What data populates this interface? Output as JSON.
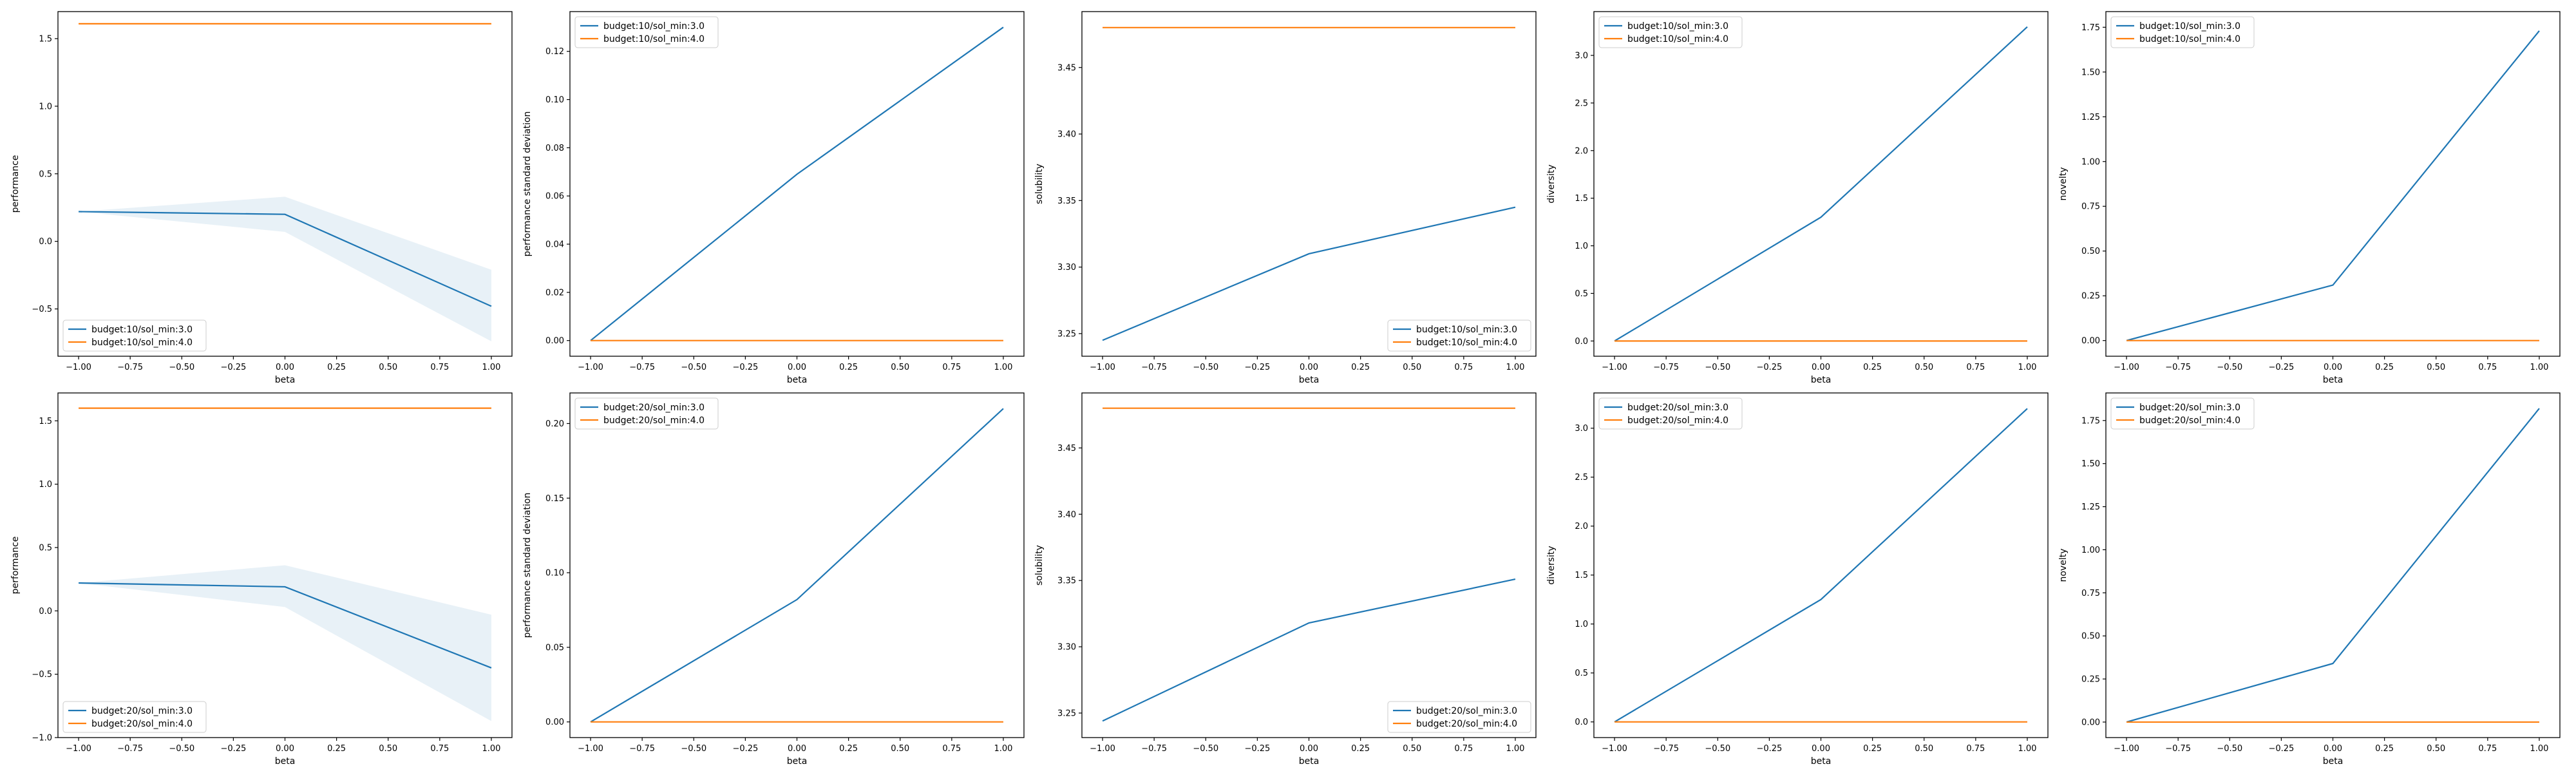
{
  "colors": {
    "series1": "#1f77b4",
    "series2": "#ff7f0e",
    "band": "#1f77b4"
  },
  "chart_data": [
    {
      "type": "line",
      "xlabel": "beta",
      "ylabel": "performance",
      "ylim": [
        -0.85,
        1.7
      ],
      "yticks": [
        -0.5,
        0.0,
        0.5,
        1.0,
        1.5
      ],
      "tick_decimals": 1,
      "legend": "lower-left",
      "x": [
        -1.0,
        0.0,
        1.0
      ],
      "series": [
        {
          "name": "budget:10/sol_min:3.0",
          "values": [
            0.22,
            0.2,
            -0.48
          ],
          "band": [
            [
              0.22,
              0.22
            ],
            [
              0.07,
              0.33
            ],
            [
              -0.74,
              -0.21
            ]
          ]
        },
        {
          "name": "budget:10/sol_min:4.0",
          "values": [
            1.61,
            1.61,
            1.61
          ]
        }
      ]
    },
    {
      "type": "line",
      "xlabel": "beta",
      "ylabel": "performance standard deviation",
      "ylim": [
        -0.0065,
        0.1365
      ],
      "yticks": [
        0.0,
        0.02,
        0.04,
        0.06,
        0.08,
        0.1,
        0.12
      ],
      "tick_decimals": 2,
      "legend": "upper-left",
      "x": [
        -1.0,
        0.0,
        1.0
      ],
      "series": [
        {
          "name": "budget:10/sol_min:3.0",
          "values": [
            0.0,
            0.069,
            0.13
          ]
        },
        {
          "name": "budget:10/sol_min:4.0",
          "values": [
            0.0,
            0.0,
            0.0
          ]
        }
      ]
    },
    {
      "type": "line",
      "xlabel": "beta",
      "ylabel": "solubility",
      "ylim": [
        3.233,
        3.492
      ],
      "yticks": [
        3.25,
        3.3,
        3.35,
        3.4,
        3.45
      ],
      "tick_decimals": 2,
      "legend": "lower-right",
      "x": [
        -1.0,
        0.0,
        1.0
      ],
      "series": [
        {
          "name": "budget:10/sol_min:3.0",
          "values": [
            3.245,
            3.31,
            3.345
          ]
        },
        {
          "name": "budget:10/sol_min:4.0",
          "values": [
            3.48,
            3.48,
            3.48
          ]
        }
      ]
    },
    {
      "type": "line",
      "xlabel": "beta",
      "ylabel": "diversity",
      "ylim": [
        -0.16,
        3.46
      ],
      "yticks": [
        0.0,
        0.5,
        1.0,
        1.5,
        2.0,
        2.5,
        3.0
      ],
      "tick_decimals": 1,
      "legend": "upper-left",
      "x": [
        -1.0,
        0.0,
        1.0
      ],
      "series": [
        {
          "name": "budget:10/sol_min:3.0",
          "values": [
            0.0,
            1.3,
            3.3
          ]
        },
        {
          "name": "budget:10/sol_min:4.0",
          "values": [
            0.0,
            0.0,
            0.0
          ]
        }
      ]
    },
    {
      "type": "line",
      "xlabel": "beta",
      "ylabel": "novelty",
      "ylim": [
        -0.0875,
        1.8375
      ],
      "yticks": [
        0.0,
        0.25,
        0.5,
        0.75,
        1.0,
        1.25,
        1.5,
        1.75
      ],
      "tick_decimals": 2,
      "legend": "upper-left",
      "x": [
        -1.0,
        0.0,
        1.0
      ],
      "series": [
        {
          "name": "budget:10/sol_min:3.0",
          "values": [
            0.0,
            0.31,
            1.73
          ]
        },
        {
          "name": "budget:10/sol_min:4.0",
          "values": [
            0.0,
            0.0,
            0.0
          ]
        }
      ]
    },
    {
      "type": "line",
      "xlabel": "beta",
      "ylabel": "performance",
      "ylim": [
        -1.0,
        1.72
      ],
      "yticks": [
        -1.0,
        -0.5,
        0.0,
        0.5,
        1.0,
        1.5
      ],
      "tick_decimals": 1,
      "legend": "lower-left",
      "x": [
        -1.0,
        0.0,
        1.0
      ],
      "series": [
        {
          "name": "budget:20/sol_min:3.0",
          "values": [
            0.22,
            0.19,
            -0.45
          ],
          "band": [
            [
              0.22,
              0.22
            ],
            [
              0.03,
              0.36
            ],
            [
              -0.87,
              -0.03
            ]
          ]
        },
        {
          "name": "budget:20/sol_min:4.0",
          "values": [
            1.6,
            1.6,
            1.6
          ]
        }
      ]
    },
    {
      "type": "line",
      "xlabel": "beta",
      "ylabel": "performance standard deviation",
      "ylim": [
        -0.0105,
        0.2205
      ],
      "yticks": [
        0.0,
        0.05,
        0.1,
        0.15,
        0.2
      ],
      "tick_decimals": 2,
      "legend": "upper-left",
      "x": [
        -1.0,
        0.0,
        1.0
      ],
      "series": [
        {
          "name": "budget:20/sol_min:3.0",
          "values": [
            0.0,
            0.082,
            0.21
          ]
        },
        {
          "name": "budget:20/sol_min:4.0",
          "values": [
            0.0,
            0.0,
            0.0
          ]
        }
      ]
    },
    {
      "type": "line",
      "xlabel": "beta",
      "ylabel": "solubility",
      "ylim": [
        3.2315,
        3.4915
      ],
      "yticks": [
        3.25,
        3.3,
        3.35,
        3.4,
        3.45
      ],
      "tick_decimals": 2,
      "legend": "lower-right",
      "x": [
        -1.0,
        0.0,
        1.0
      ],
      "series": [
        {
          "name": "budget:20/sol_min:3.0",
          "values": [
            3.244,
            3.318,
            3.351
          ]
        },
        {
          "name": "budget:20/sol_min:4.0",
          "values": [
            3.48,
            3.48,
            3.48
          ]
        }
      ]
    },
    {
      "type": "line",
      "xlabel": "beta",
      "ylabel": "diversity",
      "ylim": [
        -0.16,
        3.36
      ],
      "yticks": [
        0.0,
        0.5,
        1.0,
        1.5,
        2.0,
        2.5,
        3.0
      ],
      "tick_decimals": 1,
      "legend": "upper-left",
      "x": [
        -1.0,
        0.0,
        1.0
      ],
      "series": [
        {
          "name": "budget:20/sol_min:3.0",
          "values": [
            0.0,
            1.25,
            3.2
          ]
        },
        {
          "name": "budget:20/sol_min:4.0",
          "values": [
            0.0,
            0.0,
            0.0
          ]
        }
      ]
    },
    {
      "type": "line",
      "xlabel": "beta",
      "ylabel": "novelty",
      "ylim": [
        -0.09,
        1.91
      ],
      "yticks": [
        0.0,
        0.25,
        0.5,
        0.75,
        1.0,
        1.25,
        1.5,
        1.75
      ],
      "tick_decimals": 2,
      "legend": "upper-left",
      "x": [
        -1.0,
        0.0,
        1.0
      ],
      "series": [
        {
          "name": "budget:20/sol_min:3.0",
          "values": [
            0.0,
            0.34,
            1.82
          ]
        },
        {
          "name": "budget:20/sol_min:4.0",
          "values": [
            0.0,
            0.0,
            0.0
          ]
        }
      ]
    }
  ],
  "x_axis": {
    "xlim": [
      -1.1,
      1.1
    ],
    "xticks": [
      -1.0,
      -0.75,
      -0.5,
      -0.25,
      0.0,
      0.25,
      0.5,
      0.75,
      1.0
    ]
  }
}
